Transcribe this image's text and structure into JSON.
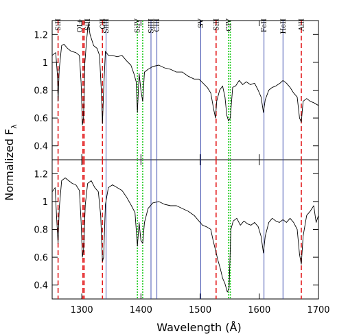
{
  "chart_data": {
    "type": "line",
    "xlabel": "Wavelength (Å)",
    "ylabel_main": "Normalized F",
    "ylabel_sub": "λ",
    "xlim": [
      1250,
      1700
    ],
    "xticks": [
      1300,
      1400,
      1500,
      1600,
      1700
    ],
    "colors": {
      "spectrum": "#000000",
      "red_dashed": "#e31a1c",
      "green_dotted": "#22cc22",
      "blue_solid": "#3344aa"
    },
    "line_markers": [
      {
        "label": "SiII",
        "x": 1260,
        "style": "red_dashed"
      },
      {
        "label": "OI+",
        "x": 1302,
        "style": "red_dashed"
      },
      {
        "label": "SiII",
        "x": 1304,
        "style": "red_dashed"
      },
      {
        "label": "CII",
        "x": 1335,
        "style": "red_dashed"
      },
      {
        "label": "SiIII",
        "x": 1341,
        "style": "blue_solid"
      },
      {
        "label": "SiIV",
        "x": 1394,
        "style": "green_dotted"
      },
      {
        "label": "",
        "x": 1403,
        "style": "green_dotted"
      },
      {
        "label": "SiIII",
        "x": 1417,
        "style": "blue_solid"
      },
      {
        "label": "CIII",
        "x": 1427,
        "style": "blue_solid"
      },
      {
        "label": "SV",
        "x": 1501,
        "style": "blue_solid"
      },
      {
        "label": "SiII",
        "x": 1527,
        "style": "red_dashed"
      },
      {
        "label": "CIV",
        "x": 1548,
        "style": "green_dotted"
      },
      {
        "label": "",
        "x": 1551,
        "style": "green_dotted"
      },
      {
        "label": "FeII",
        "x": 1608,
        "style": "blue_solid"
      },
      {
        "label": "HeII",
        "x": 1640,
        "style": "blue_solid"
      },
      {
        "label": "AlII",
        "x": 1671,
        "style": "red_dashed"
      }
    ],
    "panels": [
      {
        "name": "top",
        "ylim": [
          0.3,
          1.3
        ],
        "yticks": [
          0.4,
          0.6,
          0.8,
          1,
          1.2
        ],
        "yticklabels": [
          "0.4",
          "0.6",
          "0.8",
          "1",
          "1.2"
        ],
        "spectrum": [
          [
            1250,
            1.05
          ],
          [
            1256,
            1.07
          ],
          [
            1259,
            0.9
          ],
          [
            1260,
            0.72
          ],
          [
            1262,
            0.95
          ],
          [
            1266,
            1.12
          ],
          [
            1270,
            1.13
          ],
          [
            1276,
            1.1
          ],
          [
            1282,
            1.08
          ],
          [
            1290,
            1.07
          ],
          [
            1296,
            1.05
          ],
          [
            1299,
            0.85
          ],
          [
            1301,
            0.55
          ],
          [
            1303,
            0.6
          ],
          [
            1305,
            0.98
          ],
          [
            1308,
            1.15
          ],
          [
            1311,
            1.28
          ],
          [
            1314,
            1.2
          ],
          [
            1320,
            1.12
          ],
          [
            1326,
            1.1
          ],
          [
            1330,
            1.05
          ],
          [
            1333,
            0.8
          ],
          [
            1335,
            0.56
          ],
          [
            1337,
            0.8
          ],
          [
            1340,
            1.08
          ],
          [
            1345,
            1.05
          ],
          [
            1352,
            1.05
          ],
          [
            1360,
            1.04
          ],
          [
            1368,
            1.05
          ],
          [
            1376,
            1.01
          ],
          [
            1383,
            0.98
          ],
          [
            1388,
            0.92
          ],
          [
            1392,
            0.86
          ],
          [
            1394,
            0.64
          ],
          [
            1397,
            0.92
          ],
          [
            1400,
            0.8
          ],
          [
            1403,
            0.72
          ],
          [
            1406,
            0.93
          ],
          [
            1412,
            0.95
          ],
          [
            1420,
            0.97
          ],
          [
            1430,
            0.98
          ],
          [
            1440,
            0.96
          ],
          [
            1450,
            0.95
          ],
          [
            1460,
            0.93
          ],
          [
            1470,
            0.93
          ],
          [
            1480,
            0.9
          ],
          [
            1490,
            0.88
          ],
          [
            1498,
            0.88
          ],
          [
            1505,
            0.85
          ],
          [
            1512,
            0.82
          ],
          [
            1518,
            0.78
          ],
          [
            1523,
            0.66
          ],
          [
            1526,
            0.6
          ],
          [
            1528,
            0.72
          ],
          [
            1533,
            0.8
          ],
          [
            1538,
            0.83
          ],
          [
            1542,
            0.75
          ],
          [
            1545,
            0.62
          ],
          [
            1548,
            0.58
          ],
          [
            1551,
            0.6
          ],
          [
            1555,
            0.82
          ],
          [
            1560,
            0.83
          ],
          [
            1566,
            0.87
          ],
          [
            1572,
            0.84
          ],
          [
            1578,
            0.86
          ],
          [
            1585,
            0.84
          ],
          [
            1592,
            0.85
          ],
          [
            1598,
            0.8
          ],
          [
            1603,
            0.75
          ],
          [
            1607,
            0.64
          ],
          [
            1610,
            0.73
          ],
          [
            1616,
            0.8
          ],
          [
            1622,
            0.82
          ],
          [
            1628,
            0.83
          ],
          [
            1635,
            0.85
          ],
          [
            1640,
            0.87
          ],
          [
            1646,
            0.85
          ],
          [
            1652,
            0.82
          ],
          [
            1658,
            0.78
          ],
          [
            1664,
            0.75
          ],
          [
            1668,
            0.6
          ],
          [
            1671,
            0.57
          ],
          [
            1674,
            0.72
          ],
          [
            1680,
            0.74
          ],
          [
            1686,
            0.72
          ],
          [
            1692,
            0.71
          ],
          [
            1700,
            0.69
          ]
        ]
      },
      {
        "name": "bottom",
        "ylim": [
          0.3,
          1.3
        ],
        "yticks": [
          0.4,
          0.6,
          0.8,
          1,
          1.2
        ],
        "yticklabels": [
          "0.4",
          "0.6",
          "0.8",
          "1",
          "1.2"
        ],
        "spectrum": [
          [
            1250,
            1.07
          ],
          [
            1255,
            1.1
          ],
          [
            1258,
            0.85
          ],
          [
            1260,
            0.7
          ],
          [
            1262,
            0.95
          ],
          [
            1266,
            1.15
          ],
          [
            1272,
            1.17
          ],
          [
            1278,
            1.15
          ],
          [
            1284,
            1.13
          ],
          [
            1290,
            1.12
          ],
          [
            1296,
            1.08
          ],
          [
            1299,
            0.85
          ],
          [
            1301,
            0.6
          ],
          [
            1303,
            0.65
          ],
          [
            1306,
            0.98
          ],
          [
            1310,
            1.13
          ],
          [
            1316,
            1.15
          ],
          [
            1322,
            1.1
          ],
          [
            1328,
            1.07
          ],
          [
            1332,
            0.9
          ],
          [
            1335,
            0.57
          ],
          [
            1337,
            0.6
          ],
          [
            1340,
            0.98
          ],
          [
            1345,
            1.1
          ],
          [
            1352,
            1.12
          ],
          [
            1360,
            1.1
          ],
          [
            1368,
            1.08
          ],
          [
            1376,
            1.03
          ],
          [
            1384,
            0.97
          ],
          [
            1390,
            0.92
          ],
          [
            1394,
            0.68
          ],
          [
            1397,
            0.85
          ],
          [
            1400,
            0.72
          ],
          [
            1403,
            0.7
          ],
          [
            1406,
            0.85
          ],
          [
            1412,
            0.95
          ],
          [
            1420,
            0.99
          ],
          [
            1430,
            1.0
          ],
          [
            1440,
            0.98
          ],
          [
            1450,
            0.97
          ],
          [
            1460,
            0.97
          ],
          [
            1470,
            0.95
          ],
          [
            1480,
            0.93
          ],
          [
            1490,
            0.9
          ],
          [
            1498,
            0.86
          ],
          [
            1504,
            0.83
          ],
          [
            1510,
            0.82
          ],
          [
            1518,
            0.8
          ],
          [
            1522,
            0.72
          ],
          [
            1526,
            0.65
          ],
          [
            1530,
            0.58
          ],
          [
            1534,
            0.52
          ],
          [
            1538,
            0.45
          ],
          [
            1542,
            0.41
          ],
          [
            1546,
            0.35
          ],
          [
            1549,
            0.38
          ],
          [
            1552,
            0.8
          ],
          [
            1556,
            0.86
          ],
          [
            1562,
            0.88
          ],
          [
            1568,
            0.83
          ],
          [
            1574,
            0.86
          ],
          [
            1580,
            0.84
          ],
          [
            1586,
            0.83
          ],
          [
            1592,
            0.85
          ],
          [
            1598,
            0.82
          ],
          [
            1603,
            0.75
          ],
          [
            1607,
            0.63
          ],
          [
            1610,
            0.75
          ],
          [
            1616,
            0.85
          ],
          [
            1622,
            0.88
          ],
          [
            1628,
            0.86
          ],
          [
            1634,
            0.85
          ],
          [
            1640,
            0.87
          ],
          [
            1646,
            0.85
          ],
          [
            1652,
            0.88
          ],
          [
            1658,
            0.85
          ],
          [
            1664,
            0.8
          ],
          [
            1668,
            0.62
          ],
          [
            1671,
            0.55
          ],
          [
            1674,
            0.75
          ],
          [
            1680,
            0.9
          ],
          [
            1686,
            0.93
          ],
          [
            1692,
            0.97
          ],
          [
            1696,
            0.85
          ],
          [
            1700,
            0.9
          ]
        ]
      }
    ]
  }
}
